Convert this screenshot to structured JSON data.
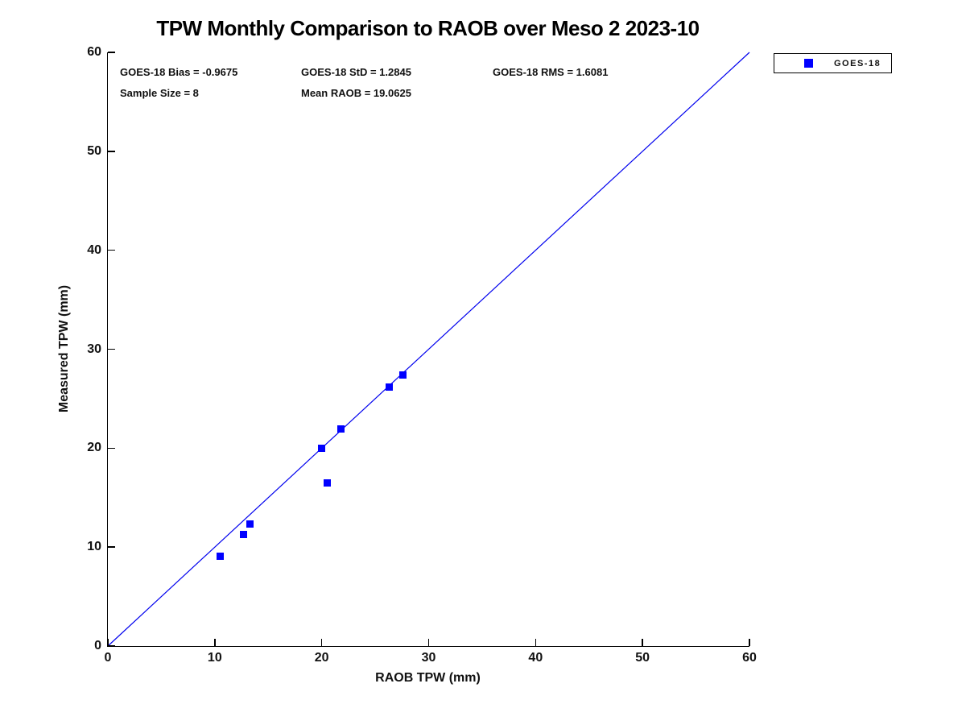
{
  "chart_data": {
    "type": "scatter",
    "title": "TPW Monthly Comparison to RAOB over Meso 2 2023-10",
    "xlabel": "RAOB TPW (mm)",
    "ylabel": "Measured TPW (mm)",
    "xlim": [
      0,
      60
    ],
    "ylim": [
      0,
      60
    ],
    "xticks": [
      0,
      10,
      20,
      30,
      40,
      50,
      60
    ],
    "yticks": [
      0,
      10,
      20,
      30,
      40,
      50,
      60
    ],
    "grid": false,
    "legend_position": "top-right-outside",
    "series": [
      {
        "name": "GOES-18",
        "marker": "square",
        "color": "#0000ff",
        "points": [
          [
            10.5,
            9.1
          ],
          [
            12.7,
            11.3
          ],
          [
            13.3,
            12.3
          ],
          [
            20.5,
            16.5
          ],
          [
            20.0,
            20.0
          ],
          [
            21.8,
            21.9
          ],
          [
            26.3,
            26.2
          ],
          [
            27.6,
            27.4
          ]
        ]
      }
    ],
    "reference_line": {
      "from": [
        0,
        0
      ],
      "to": [
        60,
        60
      ],
      "color": "#0000ee"
    },
    "annotations": [
      "GOES-18 Bias = -0.9675",
      "GOES-18 StD = 1.2845",
      "GOES-18 RMS = 1.6081",
      "Sample Size = 8",
      "Mean RAOB = 19.0625"
    ]
  }
}
